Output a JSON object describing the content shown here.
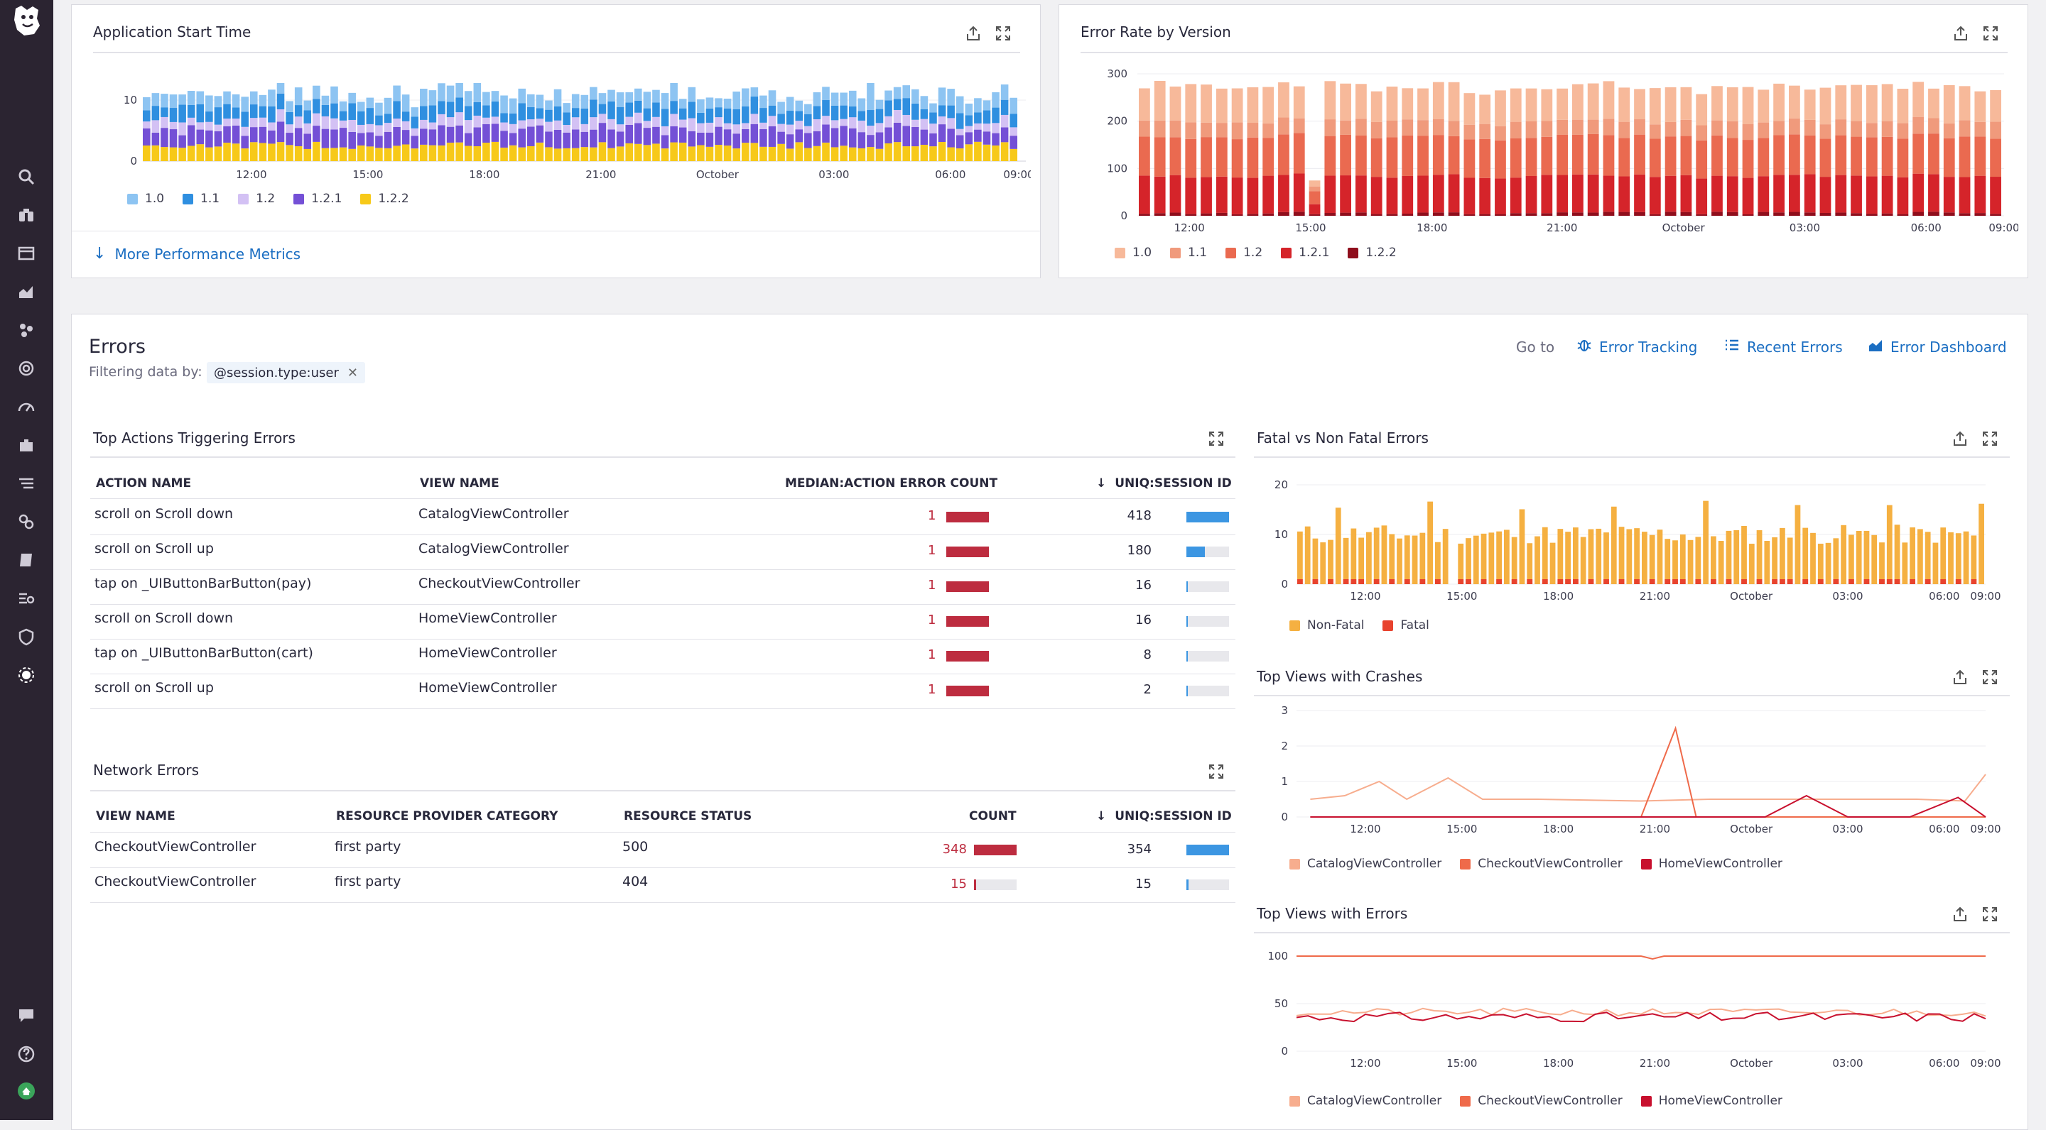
{
  "sidebar": {
    "icons": [
      "datadog-logo-icon",
      "search-icon",
      "binoculars-icon",
      "dashboard-icon",
      "metrics-chart-icon",
      "integrations-icon",
      "watchdog-icon",
      "apm-gauge-icon",
      "puzzle-icon",
      "logs-icon",
      "link-icon",
      "notebook-icon",
      "traces-icon",
      "shield-icon",
      "rum-icon",
      "chat-icon",
      "help-icon",
      "user-avatar-icon"
    ]
  },
  "colors": {
    "accent": "#1b6ec2",
    "sidebar": "#2b2431",
    "error_red": "#bd2c3f",
    "session_blue": "#3c96e2"
  },
  "start_time": {
    "title": "Application Start Time",
    "y_ticks": [
      "10",
      "0"
    ],
    "x_ticks": [
      "12:00",
      "15:00",
      "18:00",
      "21:00",
      "October",
      "03:00",
      "06:00",
      "09:00"
    ],
    "legend": [
      {
        "label": "1.0",
        "color": "#8dc4f2"
      },
      {
        "label": "1.1",
        "color": "#2f8fe0"
      },
      {
        "label": "1.2",
        "color": "#d3c1f4"
      },
      {
        "label": "1.2.1",
        "color": "#7450d6"
      },
      {
        "label": "1.2.2",
        "color": "#f7c919"
      }
    ],
    "more_link": "More Performance Metrics"
  },
  "error_rate": {
    "title": "Error Rate by Version",
    "y_ticks": [
      "300",
      "200",
      "100",
      "0"
    ],
    "x_ticks": [
      "12:00",
      "15:00",
      "18:00",
      "21:00",
      "October",
      "03:00",
      "06:00",
      "09:00"
    ],
    "legend": [
      {
        "label": "1.0",
        "color": "#f7b99a"
      },
      {
        "label": "1.1",
        "color": "#f09a7c"
      },
      {
        "label": "1.2",
        "color": "#ea6a50"
      },
      {
        "label": "1.2.1",
        "color": "#d5242a"
      },
      {
        "label": "1.2.2",
        "color": "#8f0e1c"
      }
    ]
  },
  "errors": {
    "title": "Errors",
    "filter_label": "Filtering data by:",
    "filter_tag": "@session.type:user",
    "goto": "Go to",
    "links": [
      "Error Tracking",
      "Recent Errors",
      "Error Dashboard"
    ]
  },
  "top_actions": {
    "title": "Top Actions Triggering Errors",
    "headers": [
      "ACTION NAME",
      "VIEW NAME",
      "MEDIAN:ACTION ERROR COUNT",
      "UNIQ:SESSION ID"
    ],
    "rows": [
      {
        "action": "scroll on Scroll down",
        "view": "CatalogViewController",
        "count": "1",
        "sessions": "418",
        "frac": 1.0
      },
      {
        "action": "scroll on Scroll up",
        "view": "CatalogViewController",
        "count": "1",
        "sessions": "180",
        "frac": 0.43
      },
      {
        "action": "tap on _UIButtonBarButton(pay)",
        "view": "CheckoutViewController",
        "count": "1",
        "sessions": "16",
        "frac": 0.04
      },
      {
        "action": "scroll on Scroll down",
        "view": "HomeViewController",
        "count": "1",
        "sessions": "16",
        "frac": 0.04
      },
      {
        "action": "tap on _UIButtonBarButton(cart)",
        "view": "HomeViewController",
        "count": "1",
        "sessions": "8",
        "frac": 0.02
      },
      {
        "action": "scroll on Scroll up",
        "view": "HomeViewController",
        "count": "1",
        "sessions": "2",
        "frac": 0.005
      }
    ]
  },
  "network_errors": {
    "title": "Network Errors",
    "headers": [
      "VIEW NAME",
      "RESOURCE PROVIDER CATEGORY",
      "RESOURCE STATUS",
      "COUNT",
      "UNIQ:SESSION ID"
    ],
    "rows": [
      {
        "view": "CheckoutViewController",
        "category": "first party",
        "status": "500",
        "count": "348",
        "count_frac": 1.0,
        "sessions": "354",
        "sess_frac": 1.0
      },
      {
        "view": "CheckoutViewController",
        "category": "first party",
        "status": "404",
        "count": "15",
        "count_frac": 0.04,
        "sessions": "15",
        "sess_frac": 0.04
      }
    ]
  },
  "fatal": {
    "title": "Fatal vs Non Fatal Errors",
    "y_ticks": [
      "20",
      "10",
      "0"
    ],
    "x_ticks": [
      "12:00",
      "15:00",
      "18:00",
      "21:00",
      "October",
      "03:00",
      "06:00",
      "09:00"
    ],
    "legend": [
      {
        "label": "Non-Fatal",
        "color": "#f5b041"
      },
      {
        "label": "Fatal",
        "color": "#e8432e"
      }
    ]
  },
  "crashes": {
    "title": "Top Views with Crashes",
    "y_ticks": [
      "3",
      "2",
      "1",
      "0"
    ],
    "x_ticks": [
      "12:00",
      "15:00",
      "18:00",
      "21:00",
      "October",
      "03:00",
      "06:00",
      "09:00"
    ],
    "legend": [
      {
        "label": "CatalogViewController",
        "color": "#f7ad8e"
      },
      {
        "label": "CheckoutViewController",
        "color": "#ef6a4a"
      },
      {
        "label": "HomeViewController",
        "color": "#c8102e"
      }
    ]
  },
  "views_errors": {
    "title": "Top Views with Errors",
    "y_ticks": [
      "100",
      "50",
      "0"
    ],
    "x_ticks": [
      "12:00",
      "15:00",
      "18:00",
      "21:00",
      "October",
      "03:00",
      "06:00",
      "09:00"
    ],
    "legend": [
      {
        "label": "CatalogViewController",
        "color": "#f7ad8e"
      },
      {
        "label": "CheckoutViewController",
        "color": "#ef6a4a"
      },
      {
        "label": "HomeViewController",
        "color": "#c8102e"
      }
    ]
  }
}
